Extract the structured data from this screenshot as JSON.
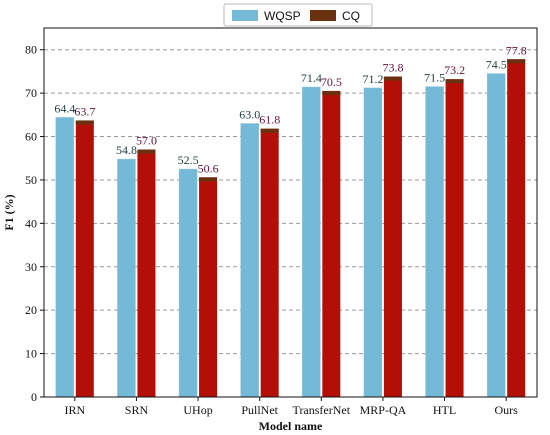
{
  "chart_data": {
    "type": "bar",
    "categories": [
      "IRN",
      "SRN",
      "UHop",
      "PullNet",
      "TransferNet",
      "MRP-QA",
      "HTL",
      "Ours"
    ],
    "series": [
      {
        "name": "WQSP",
        "values": [
          64.4,
          54.8,
          52.5,
          63.0,
          71.4,
          71.2,
          71.5,
          74.5
        ],
        "labels": [
          "64.4",
          "54.8",
          "52.5",
          "63.0",
          "71.4",
          "71.2",
          "71.5",
          "74.5"
        ],
        "color": "#74b9d8",
        "label_color": "#1f3f3f"
      },
      {
        "name": "CQ",
        "values": [
          63.7,
          57.0,
          50.6,
          61.8,
          70.5,
          73.8,
          73.2,
          77.8
        ],
        "labels": [
          "63.7",
          "57.0",
          "50.6",
          "61.8",
          "70.5",
          "73.8",
          "73.2",
          "77.8"
        ],
        "color": "#b40f06",
        "label_color": "#6a103a",
        "cap_color": "#6a3010"
      }
    ],
    "xlabel": "Model name",
    "ylabel": "F1 (%)",
    "ylim": [
      0,
      85
    ],
    "yticks": [
      0,
      10,
      20,
      30,
      40,
      50,
      60,
      70,
      80
    ],
    "grid": "horizontal-dashed",
    "legend_position": "top-center"
  }
}
